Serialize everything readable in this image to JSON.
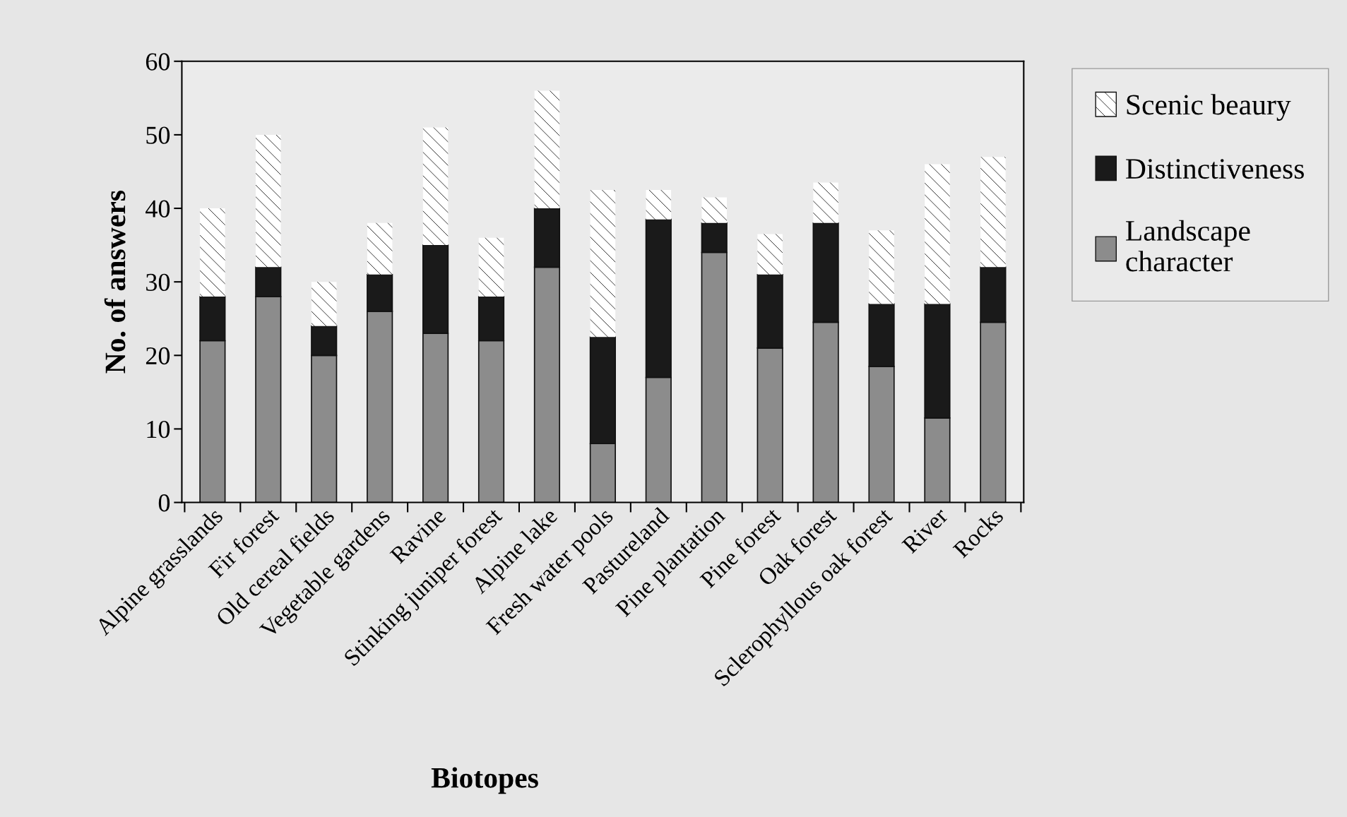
{
  "chart_data": {
    "type": "bar",
    "stacked": true,
    "xlabel": "Biotopes",
    "ylabel": "No. of answers",
    "categories": [
      "Alpine grasslands",
      "Fir forest",
      "Old cereal fields",
      "Vegetable gardens",
      "Ravine",
      "Stinking juniper forest",
      "Alpine lake",
      "Fresh water pools",
      "Pastureland",
      "Pine plantation",
      "Pine forest",
      "Oak forest",
      "Sclerophyllous oak forest",
      "River",
      "Rocks"
    ],
    "series": [
      {
        "name": "Landscape\ncharacter",
        "color": "#8c8c8c",
        "values": [
          22,
          28,
          20,
          26,
          23,
          22,
          32,
          8,
          17,
          34,
          21,
          24.5,
          18.5,
          11.5,
          24.5
        ]
      },
      {
        "name": "Distinctiveness",
        "color": "#1a1a1a",
        "values": [
          6,
          4,
          4,
          5,
          12,
          6,
          8,
          14.5,
          21.5,
          4,
          10,
          13.5,
          8.5,
          15.5,
          7.5
        ]
      },
      {
        "name": "Scenic beaury",
        "color": "#ffffff",
        "values": [
          12,
          18,
          6,
          7,
          16,
          8,
          16,
          20,
          4,
          3.5,
          5.5,
          5.5,
          10,
          19,
          15
        ]
      }
    ],
    "ylim": [
      0,
      60
    ],
    "yticks": [
      0,
      10,
      20,
      30,
      40,
      50,
      60
    ],
    "grid": false,
    "legend": "right"
  }
}
